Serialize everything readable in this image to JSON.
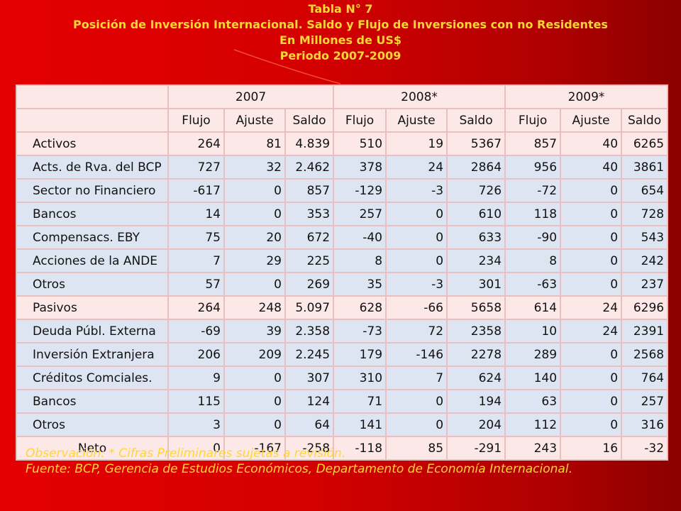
{
  "title": {
    "line1": "Tabla N° 7",
    "line2": "Posición de Inversión Internacional. Saldo y Flujo de Inversiones con no Residentes",
    "line3": "En Millones de US$",
    "line4": "Periodo 2007-2009"
  },
  "table": {
    "years": [
      "2007",
      "2008*",
      "2009*"
    ],
    "subheaders": [
      "Flujo",
      "Ajuste",
      "Saldo",
      "Flujo",
      "Ajuste",
      "Saldo",
      "Flujo",
      "Ajuste",
      "Saldo"
    ],
    "rows": [
      {
        "label": "Activos",
        "values": [
          "264",
          "81",
          "4.839",
          "510",
          "19",
          "5367",
          "857",
          "40",
          "6265"
        ]
      },
      {
        "label": "Acts. de Rva. del BCP",
        "values": [
          "727",
          "32",
          "2.462",
          "378",
          "24",
          "2864",
          "956",
          "40",
          "3861"
        ]
      },
      {
        "label": "Sector no Financiero",
        "values": [
          "-617",
          "0",
          "857",
          "-129",
          "-3",
          "726",
          "-72",
          "0",
          "654"
        ]
      },
      {
        "label": "Bancos",
        "values": [
          "14",
          "0",
          "353",
          "257",
          "0",
          "610",
          "118",
          "0",
          "728"
        ]
      },
      {
        "label": "Compensacs. EBY",
        "values": [
          "75",
          "20",
          "672",
          "-40",
          "0",
          "633",
          "-90",
          "0",
          "543"
        ]
      },
      {
        "label": "Acciones de la ANDE",
        "values": [
          "7",
          "29",
          "225",
          "8",
          "0",
          "234",
          "8",
          "0",
          "242"
        ]
      },
      {
        "label": "Otros",
        "values": [
          "57",
          "0",
          "269",
          "35",
          "-3",
          "301",
          "-63",
          "0",
          "237"
        ]
      },
      {
        "label": "Pasivos",
        "values": [
          "264",
          "248",
          "5.097",
          "628",
          "-66",
          "5658",
          "614",
          "24",
          "6296"
        ]
      },
      {
        "label": "Deuda Públ. Externa",
        "values": [
          "-69",
          "39",
          "2.358",
          "-73",
          "72",
          "2358",
          "10",
          "24",
          "2391"
        ]
      },
      {
        "label": "Inversión Extranjera",
        "values": [
          "206",
          "209",
          "2.245",
          "179",
          "-146",
          "2278",
          "289",
          "0",
          "2568"
        ]
      },
      {
        "label": "Créditos Comciales.",
        "values": [
          "9",
          "0",
          "307",
          "310",
          "7",
          "624",
          "140",
          "0",
          "764"
        ]
      },
      {
        "label": "Bancos",
        "values": [
          "115",
          "0",
          "124",
          "71",
          "0",
          "194",
          "63",
          "0",
          "257"
        ]
      },
      {
        "label": "Otros",
        "values": [
          "3",
          "0",
          "64",
          "141",
          "0",
          "204",
          "112",
          "0",
          "316"
        ]
      },
      {
        "label": "Neto",
        "values": [
          "0",
          "-167",
          "-258",
          "-118",
          "85",
          "-291",
          "243",
          "16",
          "-32"
        ]
      }
    ]
  },
  "notes": {
    "observacion": "Observación: * Cifras Preliminares sujetas a revisión.",
    "fuente": "Fuente: BCP, Gerencia de Estudios Económicos, Departamento de Economía Internacional."
  },
  "colors": {
    "background": "#d40000",
    "title_text": "#ffd633",
    "header_rows": "#fde8e8",
    "detail_rows": "#dde5f3"
  }
}
